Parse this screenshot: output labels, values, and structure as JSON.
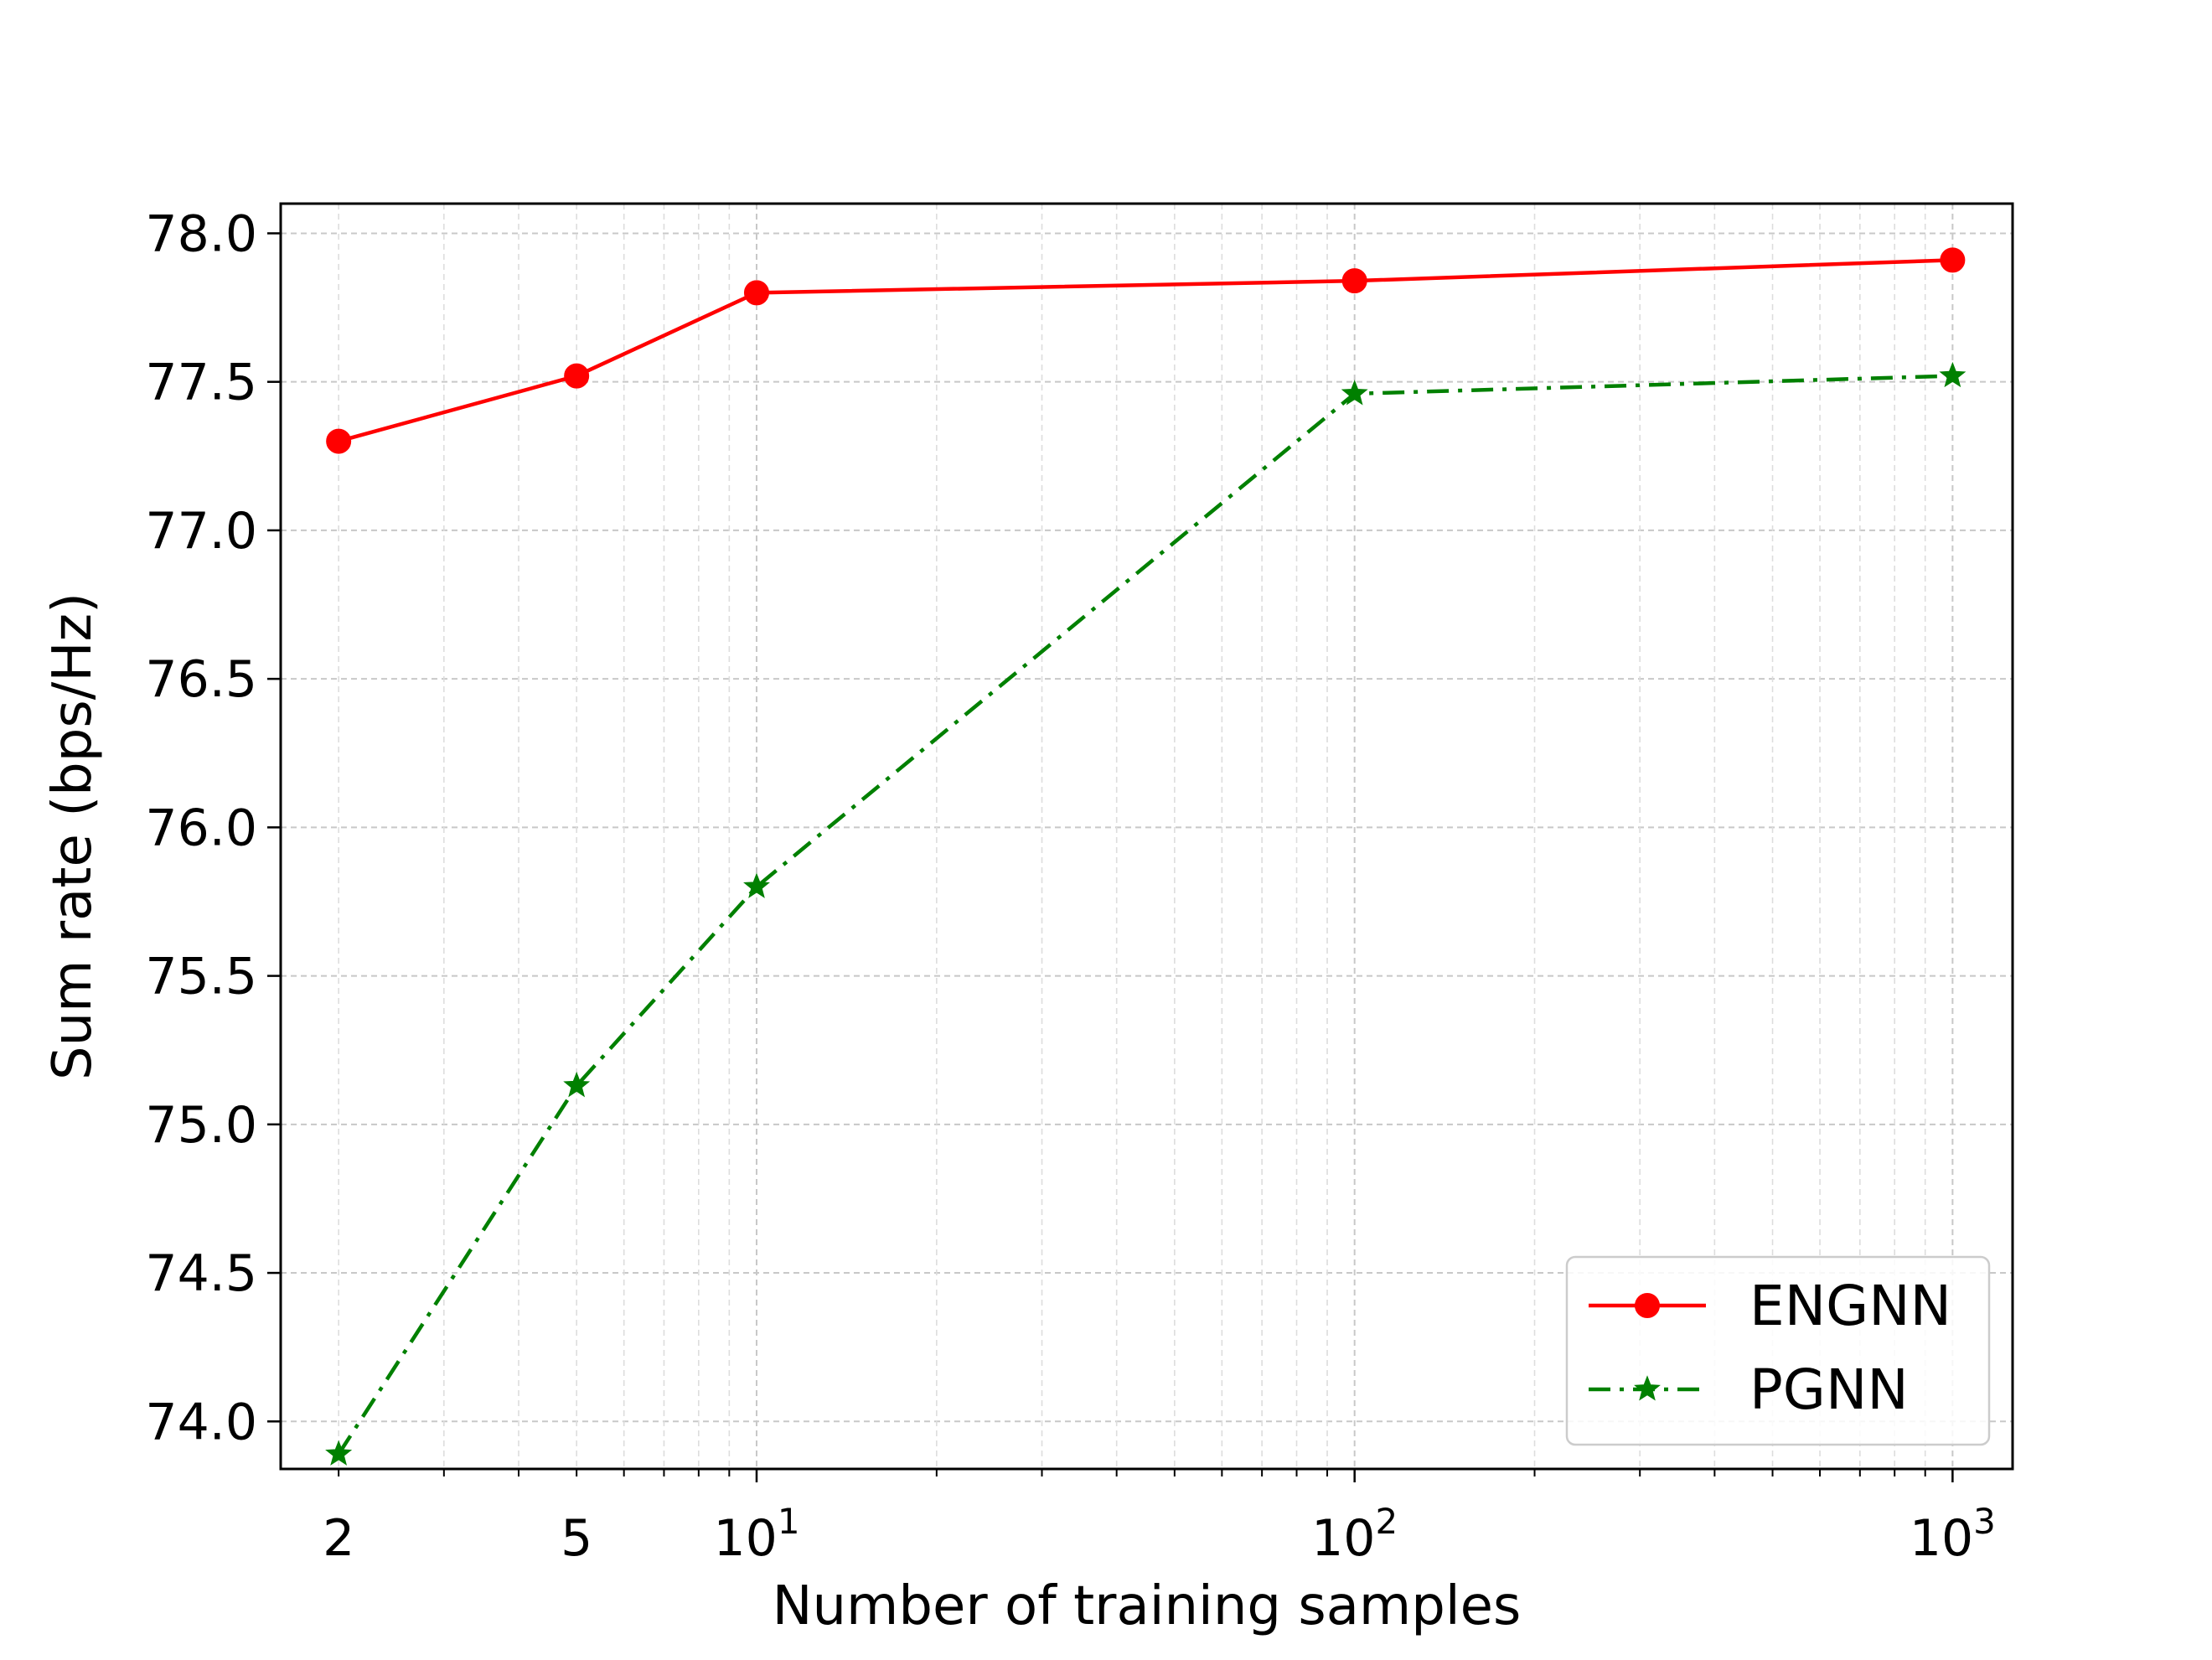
{
  "chart_data": {
    "type": "line",
    "title": "",
    "xlabel": "Number of training samples",
    "ylabel": "Sum rate (bps/Hz)",
    "x_scale": "log",
    "xlim": [
      1.6,
      1260
    ],
    "ylim": [
      73.84,
      78.1
    ],
    "grid": true,
    "legend_position": "lower-right",
    "x": [
      2,
      5,
      10,
      100,
      1000
    ],
    "x_ticks": [
      {
        "value": 2,
        "base": "2",
        "exp": ""
      },
      {
        "value": 5,
        "base": "5",
        "exp": ""
      },
      {
        "value": 10,
        "base": "10",
        "exp": "1"
      },
      {
        "value": 100,
        "base": "10",
        "exp": "2"
      },
      {
        "value": 1000,
        "base": "10",
        "exp": "3"
      }
    ],
    "y_ticks": [
      "74.0",
      "74.5",
      "75.0",
      "75.5",
      "76.0",
      "76.5",
      "77.0",
      "77.5",
      "78.0"
    ],
    "series": [
      {
        "name": "ENGNN",
        "color": "#ff0000",
        "marker": "circle",
        "linestyle": "solid",
        "values": [
          77.3,
          77.52,
          77.8,
          77.84,
          77.91
        ]
      },
      {
        "name": "PGNN",
        "color": "#008000",
        "marker": "star",
        "linestyle": "dashdot",
        "values": [
          73.89,
          75.13,
          75.8,
          77.46,
          77.52
        ]
      }
    ]
  }
}
